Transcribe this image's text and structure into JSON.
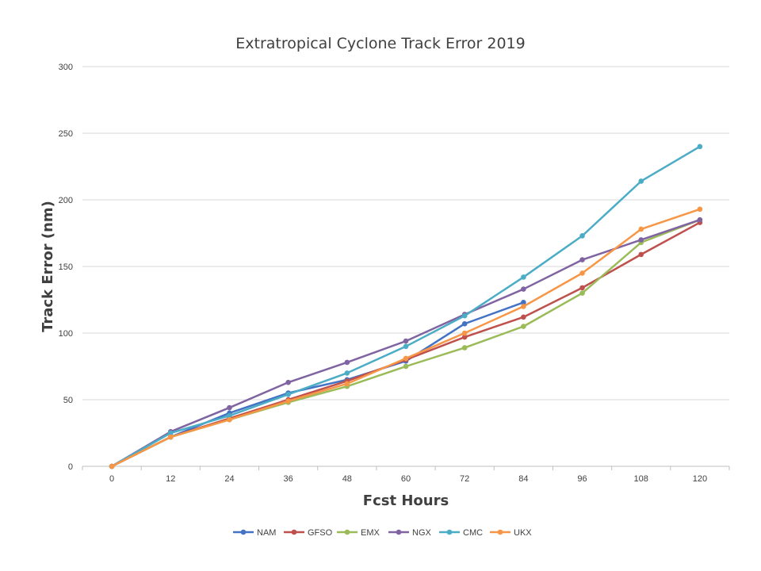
{
  "chart_data": {
    "type": "line",
    "title": "Extratropical Cyclone Track Error 2019",
    "xlabel": "Fcst Hours",
    "ylabel": "Track Error  (nm)",
    "x": [
      0,
      12,
      24,
      36,
      48,
      60,
      72,
      84,
      96,
      108,
      120
    ],
    "ylim": [
      0,
      300
    ],
    "yticks": [
      0,
      50,
      100,
      150,
      200,
      250,
      300
    ],
    "grid": true,
    "legend_position": "bottom",
    "series": [
      {
        "name": "NAM",
        "color": "#4472c4",
        "values": [
          0,
          22,
          40,
          55,
          65,
          79,
          107,
          123,
          null,
          null,
          null
        ]
      },
      {
        "name": "GFSO",
        "color": "#c0504d",
        "values": [
          0,
          22,
          36,
          50,
          64,
          80,
          97,
          112,
          134,
          159,
          183
        ]
      },
      {
        "name": "EMX",
        "color": "#9bbb59",
        "values": [
          0,
          22,
          35,
          48,
          60,
          75,
          89,
          105,
          130,
          168,
          185
        ]
      },
      {
        "name": "NGX",
        "color": "#8064a2",
        "values": [
          0,
          26,
          44,
          63,
          78,
          94,
          114,
          133,
          155,
          170,
          185
        ]
      },
      {
        "name": "CMC",
        "color": "#4bacc6",
        "values": [
          0,
          25,
          38,
          54,
          70,
          90,
          113,
          142,
          173,
          214,
          240
        ]
      },
      {
        "name": "UKX",
        "color": "#f79646",
        "values": [
          0,
          22,
          35,
          49,
          62,
          81,
          100,
          120,
          145,
          178,
          193
        ]
      }
    ]
  }
}
